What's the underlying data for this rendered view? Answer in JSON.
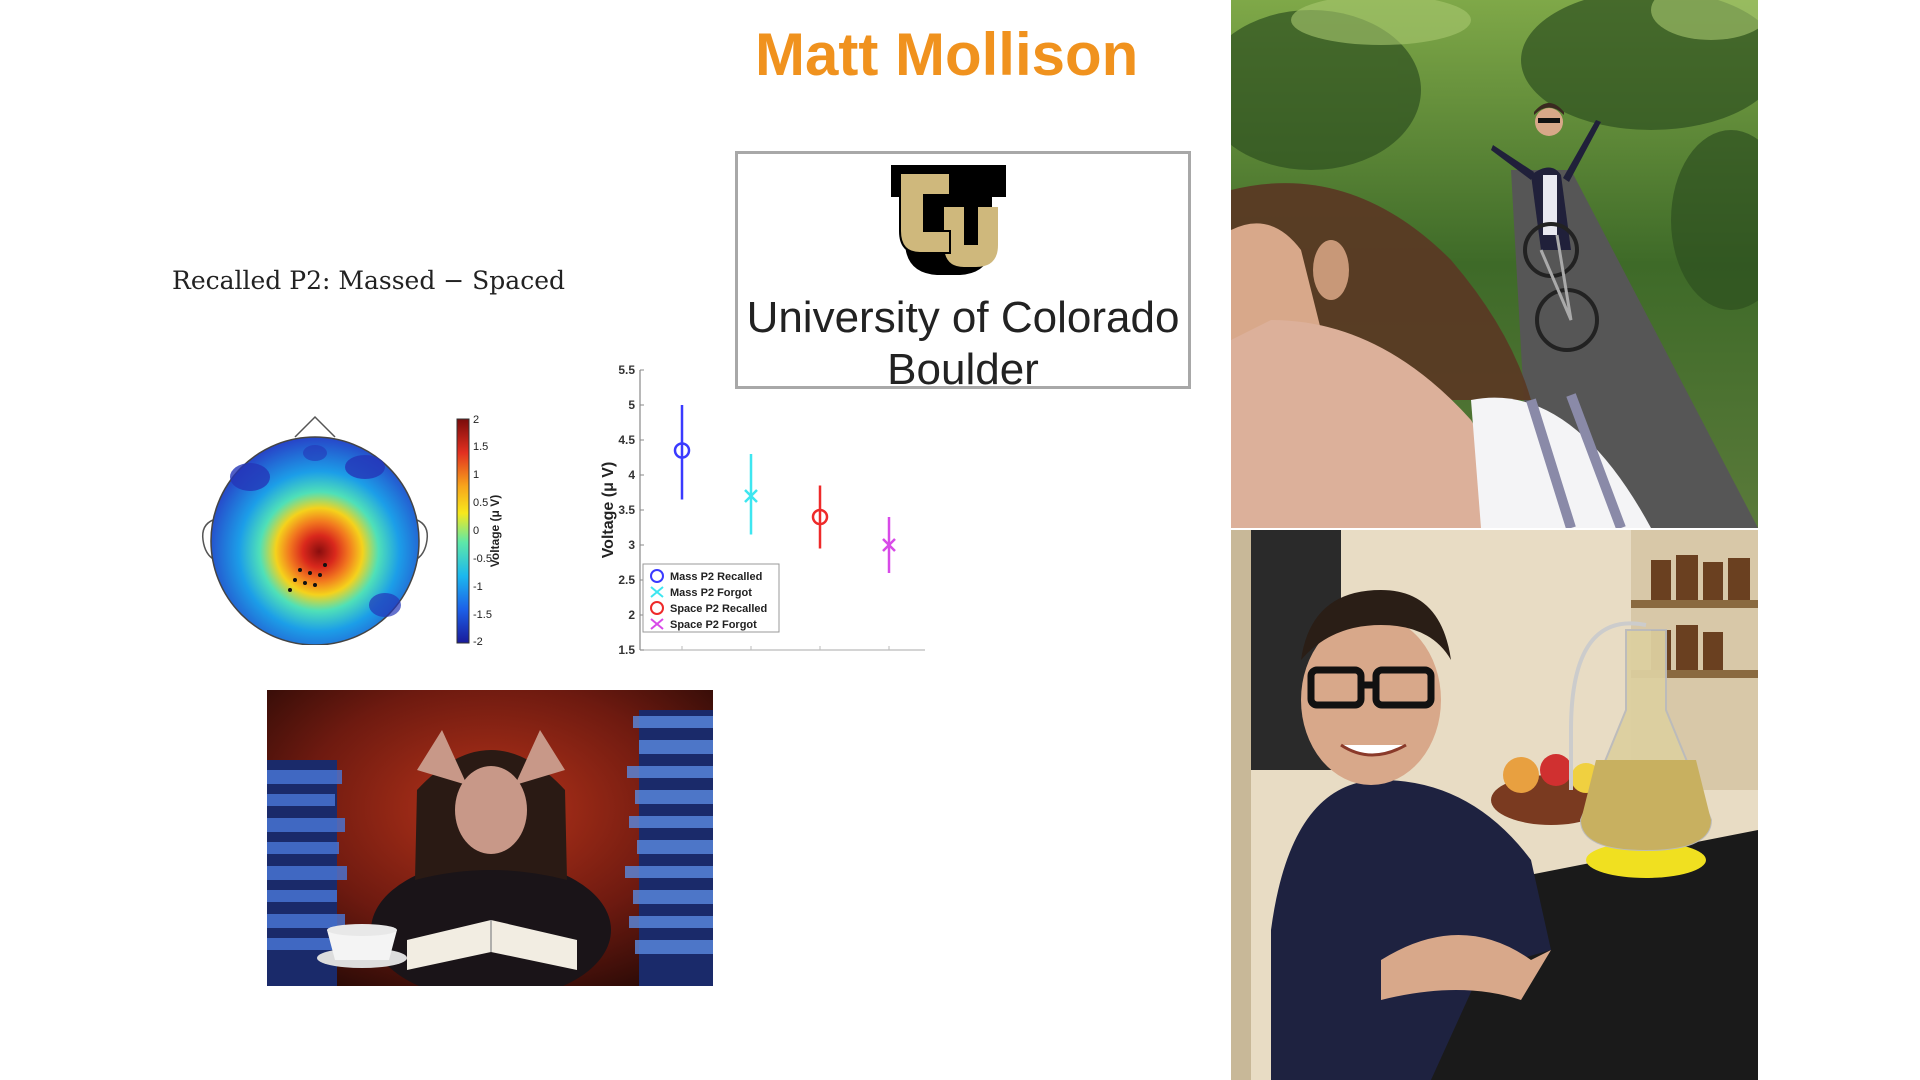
{
  "slide": {
    "title": "Matt Mollison",
    "topo_title": "Recalled P2: Massed − Spaced",
    "university": {
      "name_line1": "University of Colorado",
      "name_line2": "Boulder",
      "logo_text": "CU"
    },
    "colorbar": {
      "label": "Voltage (μ V)",
      "ticks": [
        "2",
        "1.5",
        "1",
        "0.5",
        "0",
        "-0.5",
        "-1",
        "-1.5",
        "-2"
      ]
    },
    "colors": {
      "title": "#f0921e",
      "cu_gold": "#cfb87c",
      "cu_black": "#000000"
    }
  },
  "chart_data": {
    "type": "scatter",
    "title": "",
    "xlabel": "",
    "ylabel": "Voltage (μ V)",
    "ylim": [
      1.5,
      5.5
    ],
    "yticks": [
      "5.5",
      "5",
      "4.5",
      "4",
      "3.5",
      "3",
      "2.5",
      "2",
      "1.5"
    ],
    "series": [
      {
        "name": "Mass P2 Recalled",
        "x": 1,
        "y": 4.35,
        "err_low": 3.65,
        "err_high": 5.0,
        "marker": "circle",
        "color": "#3a3aff"
      },
      {
        "name": "Mass P2 Forgot",
        "x": 2,
        "y": 3.7,
        "err_low": 3.15,
        "err_high": 4.3,
        "marker": "x",
        "color": "#3ee6f0"
      },
      {
        "name": "Space P2 Recalled",
        "x": 3,
        "y": 3.4,
        "err_low": 2.95,
        "err_high": 3.85,
        "marker": "circle",
        "color": "#ee2a2a"
      },
      {
        "name": "Space P2 Forgot",
        "x": 4,
        "y": 3.0,
        "err_low": 2.6,
        "err_high": 3.4,
        "marker": "x",
        "color": "#d84ae8"
      }
    ],
    "legend": "bottom-left"
  }
}
